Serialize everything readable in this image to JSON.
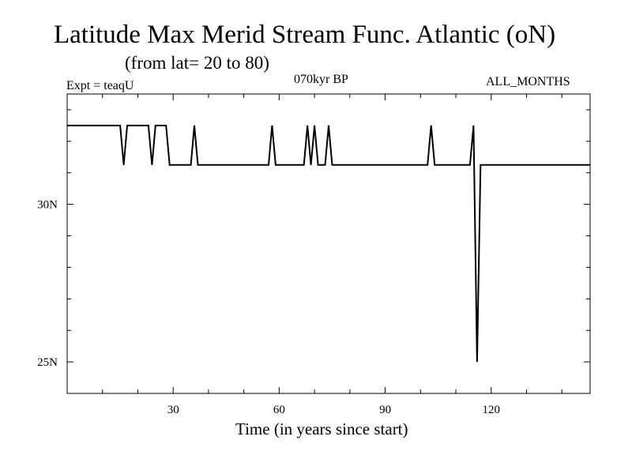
{
  "header": {
    "title": "Latitude Max Merid Stream Func. Atlantic (oN)",
    "subtitle": "(from lat= 20 to 80)",
    "experiment": "Expt = teaqU",
    "period": "070kyr BP",
    "months": "ALL_MONTHS"
  },
  "chart_data": {
    "type": "line",
    "title": "Latitude Max Merid Stream Func. Atlantic (oN)",
    "subtitle": "(from lat= 20 to 80)",
    "xlabel": "Time (in years since start)",
    "ylabel": "",
    "xlim": [
      0,
      148
    ],
    "ylim": [
      24,
      33.5
    ],
    "x_ticks": [
      30,
      60,
      90,
      120
    ],
    "x_tick_labels": [
      "30",
      "60",
      "90",
      "120"
    ],
    "y_ticks": [
      25,
      30
    ],
    "y_tick_labels": [
      "25N",
      "30N"
    ],
    "grid": false,
    "series": [
      {
        "values_lat_N": [
          [
            0,
            32.5
          ],
          [
            15,
            32.5
          ],
          [
            16,
            31.25
          ],
          [
            17,
            32.5
          ],
          [
            23,
            32.5
          ],
          [
            24,
            31.25
          ],
          [
            25,
            32.5
          ],
          [
            28,
            32.5
          ],
          [
            29,
            31.25
          ],
          [
            35,
            31.25
          ],
          [
            36,
            32.5
          ],
          [
            37,
            31.25
          ],
          [
            57,
            31.25
          ],
          [
            58,
            32.5
          ],
          [
            59,
            31.25
          ],
          [
            67,
            31.25
          ],
          [
            68,
            32.5
          ],
          [
            69,
            31.25
          ],
          [
            70,
            32.5
          ],
          [
            71,
            31.25
          ],
          [
            73,
            31.25
          ],
          [
            74,
            32.5
          ],
          [
            75,
            31.25
          ],
          [
            102,
            31.25
          ],
          [
            103,
            32.5
          ],
          [
            104,
            31.25
          ],
          [
            114,
            31.25
          ],
          [
            115,
            32.5
          ],
          [
            116,
            25.0
          ],
          [
            117,
            31.25
          ],
          [
            148,
            31.25
          ]
        ]
      }
    ]
  }
}
